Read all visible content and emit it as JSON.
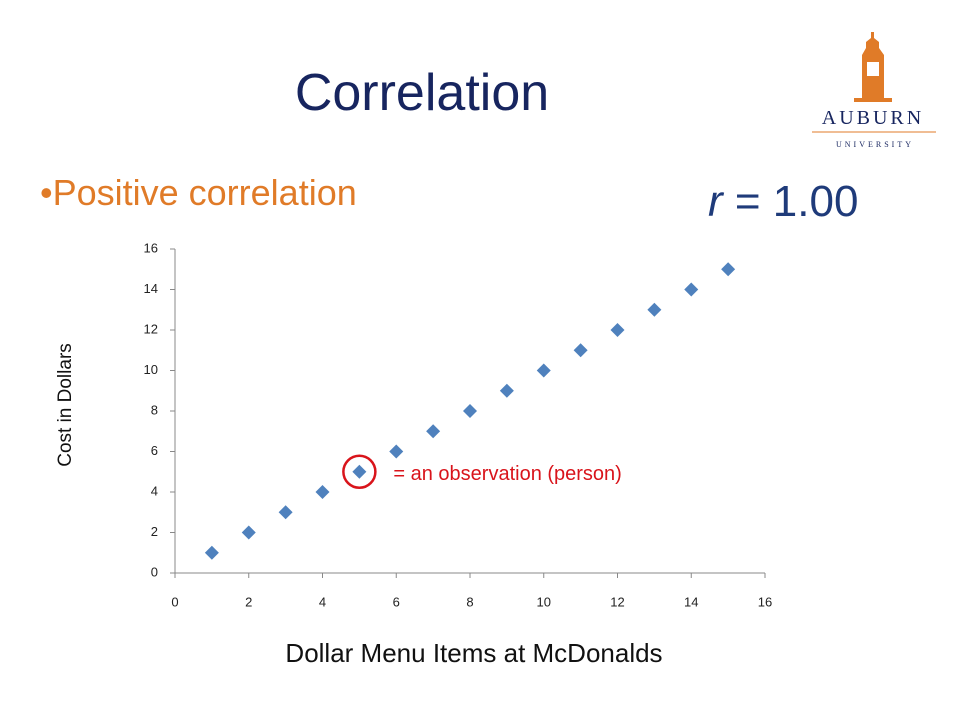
{
  "slide": {
    "title": "Correlation",
    "bullet": "Positive correlation",
    "r_symbol": "r",
    "r_value": "= 1.00",
    "logo_name": "AUBURN",
    "logo_sub": "UNIVERSITY"
  },
  "chart_data": {
    "type": "scatter",
    "x_label": "Dollar Menu Items at McDonalds",
    "y_label": "Cost in Dollars",
    "annotation": "= an observation (person)",
    "x": [
      1,
      2,
      3,
      4,
      5,
      6,
      7,
      8,
      9,
      10,
      11,
      12,
      13,
      14,
      15
    ],
    "values": [
      1,
      2,
      3,
      4,
      5,
      6,
      7,
      8,
      9,
      10,
      11,
      12,
      13,
      14,
      15
    ],
    "color": "#4f81bd",
    "xlim": [
      0,
      16
    ],
    "ylim": [
      0,
      16
    ],
    "xticks": [
      0,
      2,
      4,
      6,
      8,
      10,
      12,
      14,
      16
    ],
    "yticks": [
      0,
      2,
      4,
      6,
      8,
      10,
      12,
      14,
      16
    ],
    "grid": false
  }
}
